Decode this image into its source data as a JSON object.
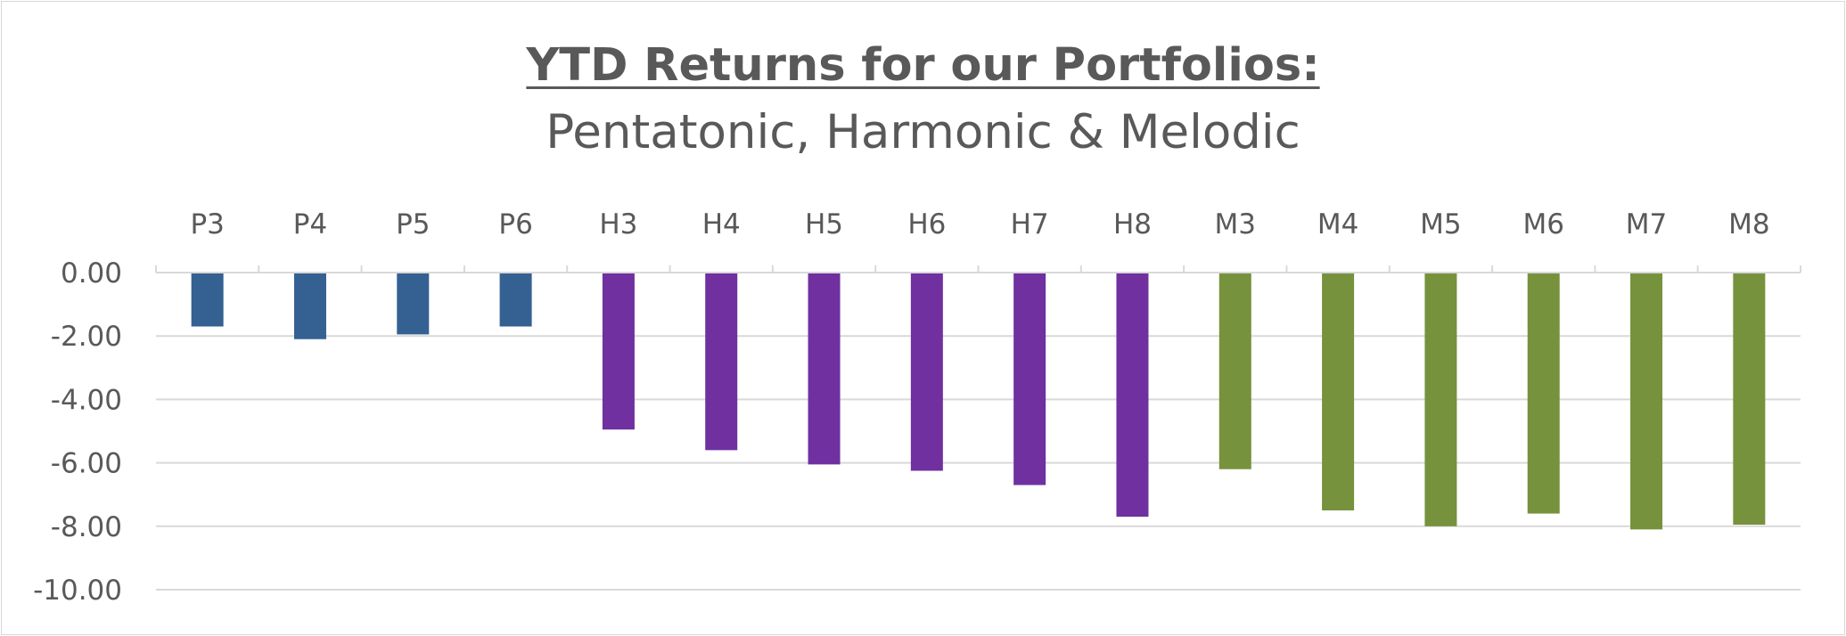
{
  "chart_data": {
    "type": "bar",
    "title": "YTD Returns for our Portfolios:",
    "subtitle": "Pentatonic, Harmonic & Melodic",
    "categories": [
      "P3",
      "P4",
      "P5",
      "P6",
      "H3",
      "H4",
      "H5",
      "H6",
      "H7",
      "H8",
      "M3",
      "M4",
      "M5",
      "M6",
      "M7",
      "M8"
    ],
    "values": [
      -1.7,
      -2.1,
      -1.95,
      -1.7,
      -4.95,
      -5.6,
      -6.05,
      -6.25,
      -6.7,
      -7.7,
      -6.2,
      -7.5,
      -8.0,
      -7.6,
      -8.1,
      -7.95
    ],
    "bar_colors": [
      "#356092",
      "#356092",
      "#356092",
      "#356092",
      "#7030a0",
      "#7030a0",
      "#7030a0",
      "#7030a0",
      "#7030a0",
      "#7030a0",
      "#76923c",
      "#76923c",
      "#76923c",
      "#76923c",
      "#76923c",
      "#76923c"
    ],
    "yticks": [
      "0.00",
      "-2.00",
      "-4.00",
      "-6.00",
      "-8.00",
      "-10.00"
    ],
    "ylim": [
      -10,
      0
    ],
    "xlabel": "",
    "ylabel": "",
    "category_axis_position": "top",
    "grid": true
  }
}
